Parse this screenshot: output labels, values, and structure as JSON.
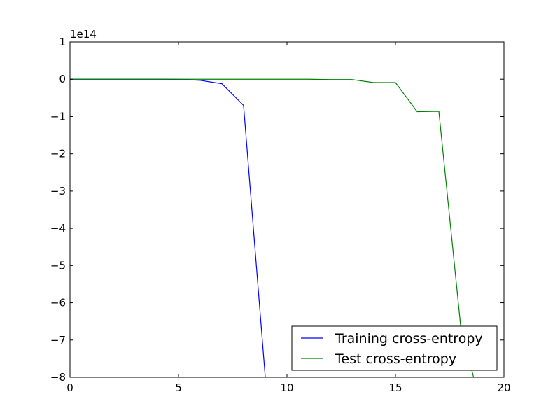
{
  "chart_data": {
    "type": "line",
    "title": "",
    "xlabel": "",
    "ylabel": "",
    "y_offset_label": "1e14",
    "xlim": [
      0,
      20
    ],
    "ylim": [
      -8,
      1
    ],
    "x_ticks": [
      0,
      5,
      10,
      15,
      20
    ],
    "x_tick_labels": [
      "0",
      "5",
      "10",
      "15",
      "20"
    ],
    "y_ticks": [
      1,
      0,
      -1,
      -2,
      -3,
      -4,
      -5,
      -6,
      -7,
      -8
    ],
    "y_tick_labels": [
      "1",
      "0",
      "−1",
      "−2",
      "−3",
      "−4",
      "−5",
      "−6",
      "−7",
      "−8"
    ],
    "grid": false,
    "legend_position": "bottom-right",
    "series": [
      {
        "name": "Training cross-entropy",
        "color": "#0000ff",
        "x": [
          0,
          1,
          2,
          3,
          4,
          5,
          6,
          7,
          8,
          9
        ],
        "y": [
          0,
          0,
          0,
          0,
          0,
          -0.005,
          -0.03,
          -0.12,
          -0.7,
          -8.0
        ]
      },
      {
        "name": "Test cross-entropy",
        "color": "#008000",
        "x": [
          0,
          1,
          2,
          3,
          4,
          5,
          6,
          7,
          8,
          9,
          10,
          11,
          12,
          13,
          14,
          15,
          16,
          17,
          18,
          18.6
        ],
        "y": [
          0,
          0,
          0,
          0,
          0,
          0,
          0,
          0,
          0,
          0,
          0,
          0,
          -0.01,
          -0.01,
          -0.09,
          -0.09,
          -0.87,
          -0.86,
          -6.6,
          -8.0
        ]
      }
    ]
  }
}
